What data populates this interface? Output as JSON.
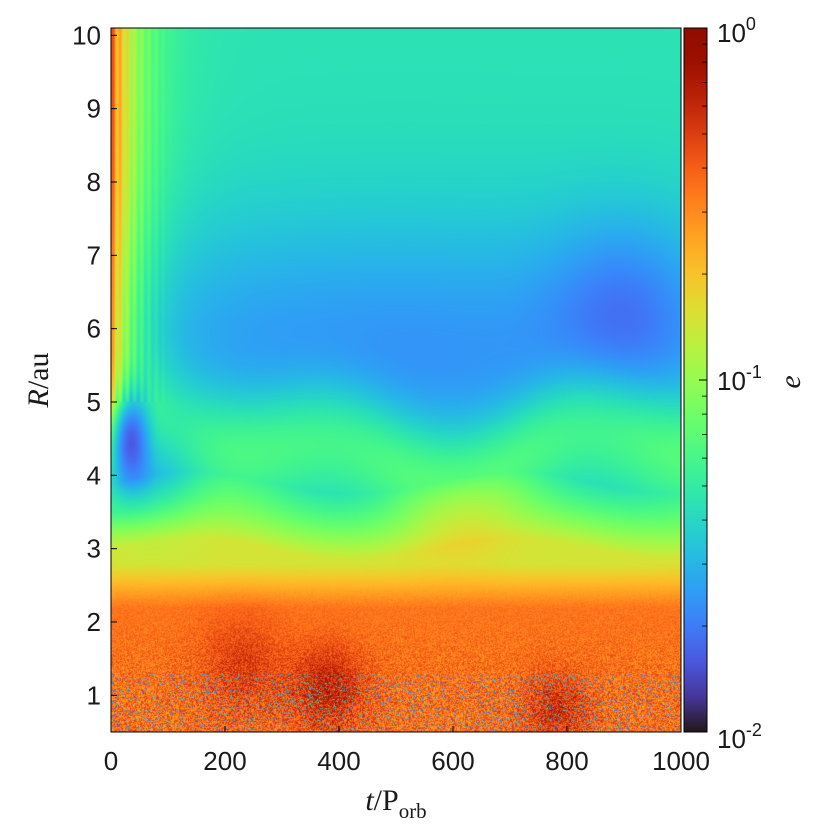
{
  "chart_data": {
    "type": "heatmap",
    "title": "",
    "xlabel": {
      "var": "t",
      "sep": "/",
      "unit": "P",
      "unit_sub": "orb"
    },
    "ylabel": {
      "var": "R",
      "sep": "/",
      "unit": "au"
    },
    "xlim": [
      0,
      1000
    ],
    "ylim": [
      0.5,
      10.1
    ],
    "x_ticks": [
      0,
      200,
      400,
      600,
      800,
      1000
    ],
    "y_ticks": [
      1,
      2,
      3,
      4,
      5,
      6,
      7,
      8,
      9,
      10
    ],
    "colorbar": {
      "label": "e",
      "scale": "log",
      "range": [
        0.01,
        1
      ],
      "colormap": "turbo",
      "ticks": [
        {
          "value": 1,
          "base": "10",
          "exp": "0"
        },
        {
          "value": 0.1,
          "base": "10",
          "exp": "-1"
        },
        {
          "value": 0.01,
          "base": "10",
          "exp": "-2"
        }
      ]
    },
    "eccentricity_profile": {
      "R": [
        0.5,
        1.0,
        1.5,
        2.0,
        2.5,
        2.8,
        3.0,
        3.3,
        3.6,
        3.9,
        4.2,
        4.6,
        5.0,
        5.5,
        6.0,
        6.5,
        7.0,
        7.5,
        8.0,
        8.5,
        9.0,
        9.5,
        10.1
      ],
      "t": [
        0,
        50,
        100,
        150,
        200,
        250,
        300,
        350,
        400,
        450,
        500,
        550,
        600,
        650,
        700,
        750,
        800,
        850,
        900,
        950,
        1000
      ]
    },
    "notes_features": [
      {
        "t": 30,
        "R": 4.6,
        "e": 0.015
      },
      {
        "t": 900,
        "R": 6.3,
        "e": 0.03
      }
    ]
  }
}
